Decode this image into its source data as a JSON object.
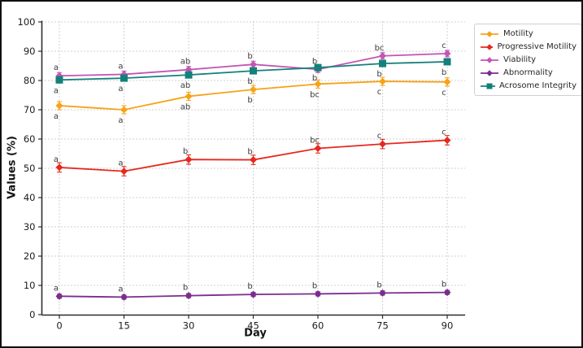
{
  "figure": {
    "background": "#ffffff",
    "border_color": "#101010"
  },
  "chart_data": {
    "type": "line",
    "title": "",
    "xlabel": "Day",
    "ylabel": "Values (%)",
    "x": [
      0,
      15,
      30,
      45,
      60,
      75,
      90
    ],
    "ylim": [
      0,
      100
    ],
    "yticks": [
      0,
      10,
      20,
      30,
      40,
      50,
      60,
      70,
      80,
      90,
      100
    ],
    "grid": {
      "show": true,
      "style": "dotted",
      "color": "#cbcbcb"
    },
    "legend": {
      "position": "upper-right-outside",
      "border_color": "#cfcfcf",
      "background": "#ffffff"
    },
    "series": [
      {
        "name": "Motility",
        "color": "#F5A318",
        "marker": "diamond",
        "letter_side": "below",
        "err": 1.4,
        "values": [
          71.4,
          70.0,
          74.6,
          76.9,
          78.8,
          79.7,
          79.5
        ],
        "letters": [
          "a",
          "a",
          "ab",
          "b",
          "bc",
          "c",
          "c"
        ]
      },
      {
        "name": "Progressive Motility",
        "color": "#E5291F",
        "marker": "diamond",
        "letter_side": "above",
        "err": 1.6,
        "values": [
          50.3,
          49.0,
          53.0,
          52.9,
          56.8,
          58.3,
          59.6
        ],
        "letters": [
          "a",
          "a",
          "b",
          "b",
          "bc",
          "c",
          "c"
        ]
      },
      {
        "name": "Viability",
        "color": "#C355B4",
        "marker": "diamond",
        "letter_side": "above",
        "err": 1.1,
        "values": [
          81.6,
          82.1,
          83.7,
          85.5,
          83.8,
          88.4,
          89.2
        ],
        "letters": [
          "a",
          "a",
          "ab",
          "b",
          "b",
          "bc",
          "c"
        ]
      },
      {
        "name": "Abnormality",
        "color": "#7B2D8E",
        "marker": "diamond",
        "letter_side": "above",
        "err": 0.7,
        "values": [
          6.3,
          6.0,
          6.5,
          6.9,
          7.1,
          7.4,
          7.6
        ],
        "letters": [
          "a",
          "a",
          "b",
          "b",
          "b",
          "b",
          "b"
        ]
      },
      {
        "name": "Acrosome Integrity",
        "color": "#14807A",
        "marker": "square",
        "letter_side": "below",
        "err": 0.9,
        "values": [
          80.2,
          80.8,
          81.9,
          83.3,
          84.4,
          85.8,
          86.4
        ],
        "letters": [
          "a",
          "a",
          "ab",
          "b",
          "b",
          "b",
          "b"
        ]
      }
    ]
  }
}
